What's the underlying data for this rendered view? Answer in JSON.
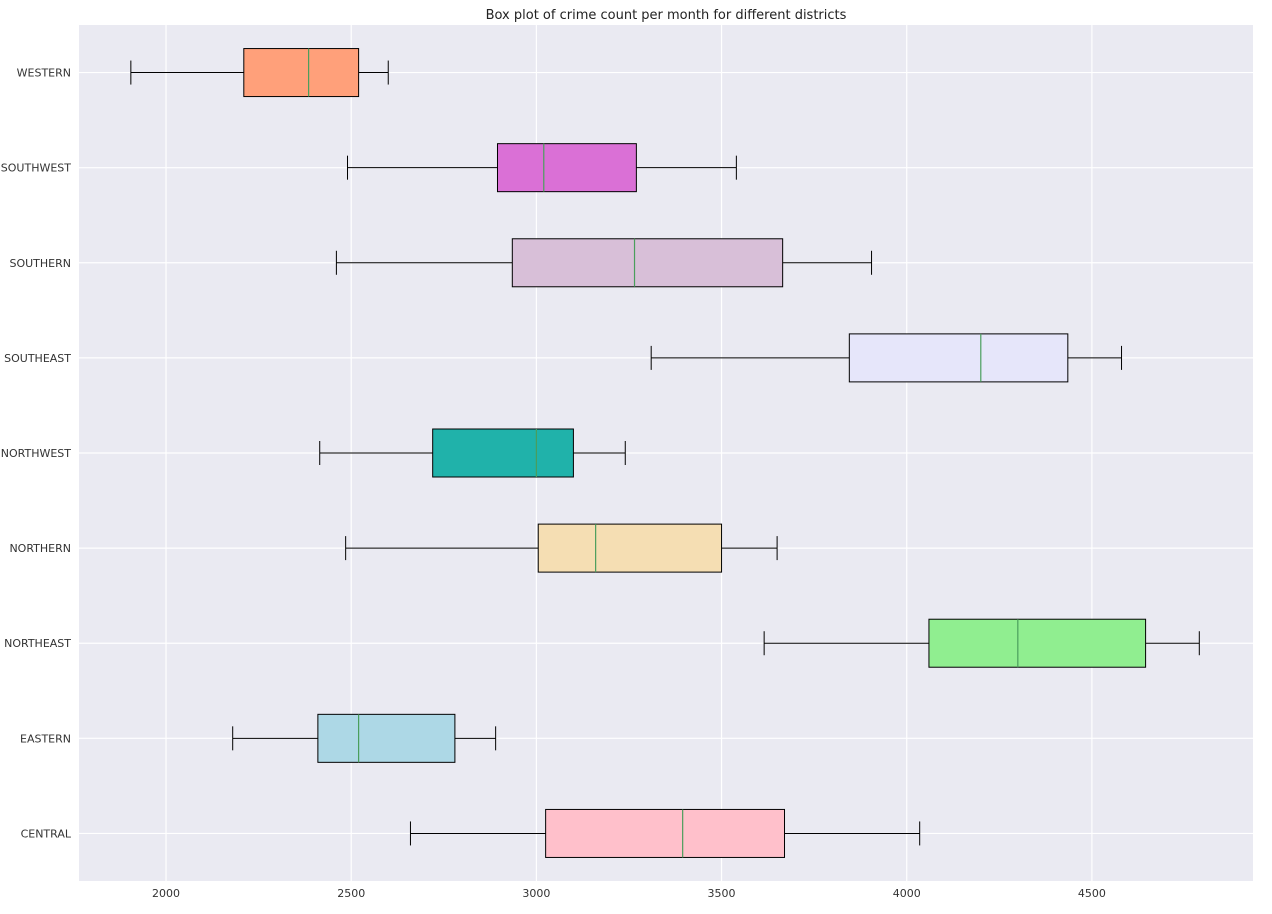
{
  "chart_data": {
    "type": "box",
    "orientation": "horizontal",
    "title": "Box plot of crime count per month for different districts",
    "xlabel": "",
    "ylabel": "",
    "xlim": [
      1765,
      4935
    ],
    "xticks": [
      2000,
      2500,
      3000,
      3500,
      4000,
      4500
    ],
    "grid": true,
    "categories": [
      "CENTRAL",
      "EASTERN",
      "NORTHEAST",
      "NORTHERN",
      "NORTHWEST",
      "SOUTHEAST",
      "SOUTHERN",
      "SOUTHWEST",
      "WESTERN"
    ],
    "series": [
      {
        "category": "CENTRAL",
        "whisker_low": 2660,
        "q1": 3025,
        "median": 3395,
        "q3": 3670,
        "whisker_high": 4035,
        "color": "#ffc0cb"
      },
      {
        "category": "EASTERN",
        "whisker_low": 2180,
        "q1": 2410,
        "median": 2520,
        "q3": 2780,
        "whisker_high": 2890,
        "color": "#add8e6"
      },
      {
        "category": "NORTHEAST",
        "whisker_low": 3615,
        "q1": 4060,
        "median": 4300,
        "q3": 4645,
        "whisker_high": 4790,
        "color": "#90ee90"
      },
      {
        "category": "NORTHERN",
        "whisker_low": 2485,
        "q1": 3005,
        "median": 3160,
        "q3": 3500,
        "whisker_high": 3650,
        "color": "#f5deb3"
      },
      {
        "category": "NORTHWEST",
        "whisker_low": 2415,
        "q1": 2720,
        "median": 3000,
        "q3": 3100,
        "whisker_high": 3240,
        "color": "#20b2aa"
      },
      {
        "category": "SOUTHEAST",
        "whisker_low": 3310,
        "q1": 3845,
        "median": 4200,
        "q3": 4435,
        "whisker_high": 4580,
        "color": "#e6e6fa"
      },
      {
        "category": "SOUTHERN",
        "whisker_low": 2460,
        "q1": 2935,
        "median": 3265,
        "q3": 3665,
        "whisker_high": 3905,
        "color": "#d8bfd8"
      },
      {
        "category": "SOUTHWEST",
        "whisker_low": 2490,
        "q1": 2895,
        "median": 3020,
        "q3": 3270,
        "whisker_high": 3540,
        "color": "#da70d6"
      },
      {
        "category": "WESTERN",
        "whisker_low": 1905,
        "q1": 2210,
        "median": 2385,
        "q3": 2520,
        "whisker_high": 2600,
        "color": "#ffa07a"
      }
    ],
    "colors": {
      "background": "#eaeaf2",
      "grid": "#ffffff",
      "median": "#4a9e5c",
      "edge": "#000000"
    }
  }
}
